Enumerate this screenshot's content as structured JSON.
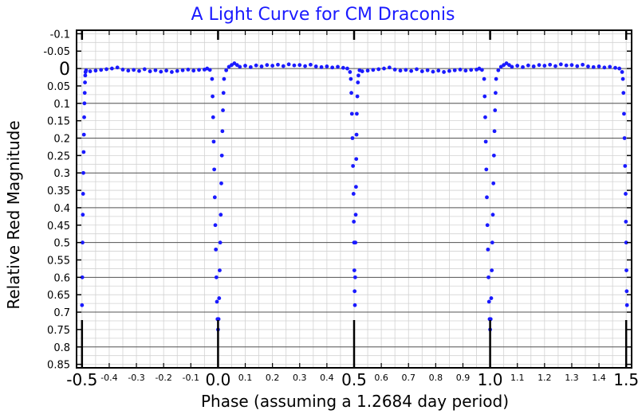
{
  "chart_data": {
    "type": "scatter",
    "title": "A Light Curve for CM Draconis",
    "xlabel": "Phase (assuming a 1.2684 day period)",
    "ylabel": "Relative Red Magnitude",
    "xlim": [
      -0.52,
      1.52
    ],
    "ylim": [
      -0.11,
      0.86
    ],
    "y_inverted": true,
    "grid": true,
    "point_color": "#1a1aff",
    "x_major_ticks": [
      {
        "value": -0.5,
        "label": "-0.5"
      },
      {
        "value": 0.0,
        "label": "0.0"
      },
      {
        "value": 0.5,
        "label": "0.5"
      },
      {
        "value": 1.0,
        "label": "1.0"
      },
      {
        "value": 1.5,
        "label": "1.5"
      }
    ],
    "x_minor_ticks": [
      {
        "value": -0.4,
        "label": "-0.4"
      },
      {
        "value": -0.3,
        "label": "-0.3"
      },
      {
        "value": -0.2,
        "label": "-0.2"
      },
      {
        "value": -0.1,
        "label": "-0.1"
      },
      {
        "value": 0.1,
        "label": "0.1"
      },
      {
        "value": 0.2,
        "label": "0.2"
      },
      {
        "value": 0.3,
        "label": "0.3"
      },
      {
        "value": 0.4,
        "label": "0.4"
      },
      {
        "value": 0.6,
        "label": "0.6"
      },
      {
        "value": 0.7,
        "label": "0.7"
      },
      {
        "value": 0.8,
        "label": "0.8"
      },
      {
        "value": 0.9,
        "label": "0.9"
      },
      {
        "value": 1.1,
        "label": "1.1"
      },
      {
        "value": 1.2,
        "label": "1.2"
      },
      {
        "value": 1.3,
        "label": "1.3"
      },
      {
        "value": 1.4,
        "label": "1.4"
      }
    ],
    "y_ticks": [
      {
        "value": -0.1,
        "label": "-0.1"
      },
      {
        "value": -0.05,
        "label": "-0.05"
      },
      {
        "value": 0,
        "label": "0",
        "major": true
      },
      {
        "value": 0.05,
        "label": "0.05"
      },
      {
        "value": 0.1,
        "label": "0.1"
      },
      {
        "value": 0.15,
        "label": "0.15"
      },
      {
        "value": 0.2,
        "label": "0.2"
      },
      {
        "value": 0.25,
        "label": "0.25"
      },
      {
        "value": 0.3,
        "label": "0.3"
      },
      {
        "value": 0.35,
        "label": "0.35"
      },
      {
        "value": 0.4,
        "label": "0.4"
      },
      {
        "value": 0.45,
        "label": "0.45"
      },
      {
        "value": 0.5,
        "label": "0.5"
      },
      {
        "value": 0.55,
        "label": "0.55"
      },
      {
        "value": 0.6,
        "label": "0.6"
      },
      {
        "value": 0.65,
        "label": "0.65"
      },
      {
        "value": 0.7,
        "label": "0.7"
      },
      {
        "value": 0.75,
        "label": "0.75"
      },
      {
        "value": 0.8,
        "label": "0.8"
      },
      {
        "value": 0.85,
        "label": "0.85"
      }
    ],
    "series": [
      {
        "points": [
          [
            -0.5,
            0.68
          ],
          [
            -0.499,
            0.6
          ],
          [
            -0.498,
            0.5
          ],
          [
            -0.497,
            0.42
          ],
          [
            -0.496,
            0.36
          ],
          [
            -0.495,
            0.3
          ],
          [
            -0.494,
            0.24
          ],
          [
            -0.493,
            0.19
          ],
          [
            -0.492,
            0.14
          ],
          [
            -0.491,
            0.1
          ],
          [
            -0.49,
            0.07
          ],
          [
            -0.489,
            0.04
          ],
          [
            -0.488,
            0.02
          ],
          [
            -0.487,
            0.01
          ],
          [
            -0.485,
            0.005
          ],
          [
            -0.47,
            0.008
          ],
          [
            -0.45,
            0.006
          ],
          [
            -0.43,
            0.004
          ],
          [
            -0.41,
            0.002
          ],
          [
            -0.39,
            0.0
          ],
          [
            -0.37,
            -0.003
          ],
          [
            -0.35,
            0.003
          ],
          [
            -0.33,
            0.006
          ],
          [
            -0.31,
            0.004
          ],
          [
            -0.29,
            0.007
          ],
          [
            -0.27,
            0.002
          ],
          [
            -0.25,
            0.008
          ],
          [
            -0.23,
            0.005
          ],
          [
            -0.21,
            0.009
          ],
          [
            -0.19,
            0.006
          ],
          [
            -0.17,
            0.01
          ],
          [
            -0.15,
            0.007
          ],
          [
            -0.13,
            0.005
          ],
          [
            -0.11,
            0.003
          ],
          [
            -0.09,
            0.006
          ],
          [
            -0.07,
            0.004
          ],
          [
            -0.05,
            0.003
          ],
          [
            -0.04,
            0.0
          ],
          [
            -0.03,
            0.004
          ],
          [
            -0.022,
            0.03
          ],
          [
            -0.02,
            0.08
          ],
          [
            -0.018,
            0.14
          ],
          [
            -0.016,
            0.21
          ],
          [
            -0.014,
            0.29
          ],
          [
            -0.012,
            0.37
          ],
          [
            -0.01,
            0.45
          ],
          [
            -0.008,
            0.52
          ],
          [
            -0.006,
            0.6
          ],
          [
            -0.004,
            0.67
          ],
          [
            -0.002,
            0.72
          ],
          [
            0.0,
            0.75
          ],
          [
            0.002,
            0.72
          ],
          [
            0.004,
            0.66
          ],
          [
            0.006,
            0.58
          ],
          [
            0.008,
            0.5
          ],
          [
            0.01,
            0.42
          ],
          [
            0.012,
            0.33
          ],
          [
            0.014,
            0.25
          ],
          [
            0.016,
            0.18
          ],
          [
            0.018,
            0.12
          ],
          [
            0.02,
            0.07
          ],
          [
            0.022,
            0.03
          ],
          [
            0.03,
            0.005
          ],
          [
            0.04,
            -0.005
          ],
          [
            0.05,
            -0.01
          ],
          [
            0.06,
            -0.015
          ],
          [
            0.07,
            -0.01
          ],
          [
            0.08,
            -0.005
          ],
          [
            0.1,
            -0.008
          ],
          [
            0.12,
            -0.004
          ],
          [
            0.14,
            -0.009
          ],
          [
            0.16,
            -0.006
          ],
          [
            0.18,
            -0.01
          ],
          [
            0.2,
            -0.008
          ],
          [
            0.22,
            -0.011
          ],
          [
            0.24,
            -0.007
          ],
          [
            0.26,
            -0.012
          ],
          [
            0.28,
            -0.009
          ],
          [
            0.3,
            -0.01
          ],
          [
            0.32,
            -0.007
          ],
          [
            0.34,
            -0.011
          ],
          [
            0.36,
            -0.006
          ],
          [
            0.38,
            -0.004
          ],
          [
            0.4,
            -0.006
          ],
          [
            0.42,
            -0.003
          ],
          [
            0.44,
            -0.005
          ],
          [
            0.46,
            -0.002
          ],
          [
            0.475,
            0.0
          ],
          [
            0.485,
            0.01
          ],
          [
            0.488,
            0.03
          ],
          [
            0.49,
            0.07
          ],
          [
            0.492,
            0.13
          ],
          [
            0.494,
            0.2
          ],
          [
            0.496,
            0.28
          ],
          [
            0.498,
            0.36
          ],
          [
            0.499,
            0.44
          ],
          [
            0.5,
            0.5
          ],
          [
            0.501,
            0.58
          ],
          [
            0.502,
            0.64
          ],
          [
            0.503,
            0.68
          ],
          [
            0.504,
            0.6
          ],
          [
            0.505,
            0.5
          ],
          [
            0.506,
            0.42
          ],
          [
            0.507,
            0.34
          ],
          [
            0.508,
            0.26
          ],
          [
            0.509,
            0.19
          ],
          [
            0.51,
            0.13
          ],
          [
            0.512,
            0.08
          ],
          [
            0.514,
            0.04
          ],
          [
            0.516,
            0.02
          ],
          [
            0.52,
            0.005
          ],
          [
            0.53,
            0.008
          ],
          [
            0.55,
            0.006
          ],
          [
            0.57,
            0.004
          ],
          [
            0.59,
            0.002
          ],
          [
            0.61,
            0.0
          ],
          [
            0.63,
            -0.003
          ],
          [
            0.65,
            0.003
          ],
          [
            0.67,
            0.006
          ],
          [
            0.69,
            0.004
          ],
          [
            0.71,
            0.007
          ],
          [
            0.73,
            0.002
          ],
          [
            0.75,
            0.008
          ],
          [
            0.77,
            0.005
          ],
          [
            0.79,
            0.009
          ],
          [
            0.81,
            0.006
          ],
          [
            0.83,
            0.01
          ],
          [
            0.85,
            0.007
          ],
          [
            0.87,
            0.005
          ],
          [
            0.89,
            0.003
          ],
          [
            0.91,
            0.006
          ],
          [
            0.93,
            0.004
          ],
          [
            0.95,
            0.003
          ],
          [
            0.96,
            0.0
          ],
          [
            0.97,
            0.004
          ],
          [
            0.978,
            0.03
          ],
          [
            0.98,
            0.08
          ],
          [
            0.982,
            0.14
          ],
          [
            0.984,
            0.21
          ],
          [
            0.986,
            0.29
          ],
          [
            0.988,
            0.37
          ],
          [
            0.99,
            0.45
          ],
          [
            0.992,
            0.52
          ],
          [
            0.994,
            0.6
          ],
          [
            0.996,
            0.67
          ],
          [
            0.998,
            0.72
          ],
          [
            1.0,
            0.75
          ],
          [
            1.002,
            0.72
          ],
          [
            1.004,
            0.66
          ],
          [
            1.006,
            0.58
          ],
          [
            1.008,
            0.5
          ],
          [
            1.01,
            0.42
          ],
          [
            1.012,
            0.33
          ],
          [
            1.014,
            0.25
          ],
          [
            1.016,
            0.18
          ],
          [
            1.018,
            0.12
          ],
          [
            1.02,
            0.07
          ],
          [
            1.022,
            0.03
          ],
          [
            1.03,
            0.005
          ],
          [
            1.04,
            -0.005
          ],
          [
            1.05,
            -0.01
          ],
          [
            1.06,
            -0.015
          ],
          [
            1.07,
            -0.01
          ],
          [
            1.08,
            -0.005
          ],
          [
            1.1,
            -0.008
          ],
          [
            1.12,
            -0.004
          ],
          [
            1.14,
            -0.009
          ],
          [
            1.16,
            -0.006
          ],
          [
            1.18,
            -0.01
          ],
          [
            1.2,
            -0.008
          ],
          [
            1.22,
            -0.011
          ],
          [
            1.24,
            -0.007
          ],
          [
            1.26,
            -0.012
          ],
          [
            1.28,
            -0.009
          ],
          [
            1.3,
            -0.01
          ],
          [
            1.32,
            -0.007
          ],
          [
            1.34,
            -0.011
          ],
          [
            1.36,
            -0.006
          ],
          [
            1.38,
            -0.004
          ],
          [
            1.4,
            -0.006
          ],
          [
            1.42,
            -0.003
          ],
          [
            1.44,
            -0.005
          ],
          [
            1.46,
            -0.002
          ],
          [
            1.475,
            0.0
          ],
          [
            1.485,
            0.01
          ],
          [
            1.488,
            0.03
          ],
          [
            1.49,
            0.07
          ],
          [
            1.492,
            0.13
          ],
          [
            1.494,
            0.2
          ],
          [
            1.496,
            0.28
          ],
          [
            1.498,
            0.36
          ],
          [
            1.499,
            0.44
          ],
          [
            1.5,
            0.5
          ],
          [
            1.501,
            0.58
          ],
          [
            1.502,
            0.64
          ],
          [
            1.503,
            0.68
          ]
        ]
      }
    ]
  }
}
